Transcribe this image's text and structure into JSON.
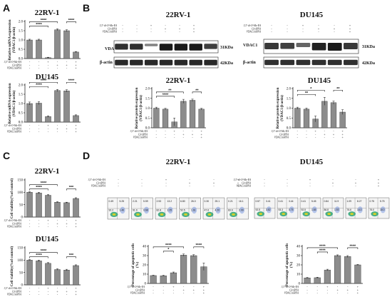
{
  "panels": {
    "A": "A",
    "B": "B",
    "C": "C",
    "D": "D"
  },
  "cell_lines": {
    "a": "22RV-1",
    "b": "DU145"
  },
  "treatment_labels": [
    "3,3'-di-O-Me-EA",
    "CircRNA",
    "VDAC1siRNA"
  ],
  "design": [
    [
      "-",
      "-",
      "-"
    ],
    [
      "-",
      "-",
      "-"
    ],
    [
      "+",
      "-",
      "-"
    ],
    [
      "-",
      "+",
      "-"
    ],
    [
      "-",
      "+",
      "-"
    ],
    [
      "+",
      "+",
      "+"
    ]
  ],
  "blots": {
    "protein": "VDAC1",
    "loading": "β-actin",
    "kda_target": "31KDa",
    "kda_loading": "42KDa"
  },
  "colors": {
    "bar": "#8c8c8c",
    "edge": "#333333",
    "band": "#1a1a1a",
    "facs_bg": "#f4f4f4"
  },
  "chart_data": [
    {
      "id": "A-22RV1",
      "type": "bar",
      "title": "22RV-1",
      "ylabel": "Relative mRNA expression (VDAC1/β-actin)",
      "ylim": [
        0,
        2.0
      ],
      "yticks": [
        0.0,
        0.5,
        1.0,
        1.5,
        2.0
      ],
      "values": [
        1.0,
        1.0,
        0.05,
        1.55,
        1.5,
        0.35
      ],
      "errors": [
        0.04,
        0.04,
        0.02,
        0.05,
        0.05,
        0.03
      ],
      "brackets": [
        {
          "from": 0,
          "to": 2,
          "label": "****",
          "level": 0
        },
        {
          "from": 0,
          "to": 3,
          "label": "****",
          "level": 1
        },
        {
          "from": 4,
          "to": 5,
          "label": "****",
          "level": 1
        }
      ]
    },
    {
      "id": "A-DU145",
      "type": "bar",
      "title": "DU145",
      "ylabel": "Relative mRNA expression (VDAC1/β-actin)",
      "ylim": [
        0,
        2.0
      ],
      "yticks": [
        0.0,
        0.5,
        1.0,
        1.5,
        2.0
      ],
      "values": [
        1.0,
        1.02,
        0.3,
        1.7,
        1.68,
        0.35
      ],
      "errors": [
        0.08,
        0.08,
        0.04,
        0.06,
        0.06,
        0.04
      ],
      "brackets": [
        {
          "from": 0,
          "to": 2,
          "label": "****",
          "level": 0
        },
        {
          "from": 0,
          "to": 3,
          "label": "****",
          "level": 1
        },
        {
          "from": 4,
          "to": 5,
          "label": "****",
          "level": 1
        }
      ]
    },
    {
      "id": "B-22RV1",
      "type": "bar",
      "title": "22RV-1",
      "ylabel": "Relative protein expression (VDAC1/β-actin)",
      "ylim": [
        0,
        2.0
      ],
      "yticks": [
        0.0,
        0.5,
        1.0,
        1.5,
        2.0
      ],
      "values": [
        1.0,
        0.95,
        0.3,
        1.35,
        1.4,
        0.95
      ],
      "errors": [
        0.05,
        0.04,
        0.2,
        0.1,
        0.06,
        0.04
      ],
      "brackets": [
        {
          "from": 0,
          "to": 2,
          "label": "****",
          "level": 0
        },
        {
          "from": 0,
          "to": 3,
          "label": "**",
          "level": 1
        },
        {
          "from": 4,
          "to": 5,
          "label": "**",
          "level": 1
        }
      ]
    },
    {
      "id": "B-DU145",
      "type": "bar",
      "title": "DU145",
      "ylabel": "Relative protein expression (VDAC1/β-actin)",
      "ylim": [
        0,
        2.0
      ],
      "yticks": [
        0.0,
        0.5,
        1.0,
        1.5,
        2.0
      ],
      "values": [
        1.0,
        0.95,
        0.45,
        1.35,
        1.28,
        0.8
      ],
      "errors": [
        0.05,
        0.06,
        0.15,
        0.2,
        0.08,
        0.12
      ],
      "brackets": [
        {
          "from": 0,
          "to": 2,
          "label": "**",
          "level": 0
        },
        {
          "from": 0,
          "to": 3,
          "label": "*",
          "level": 1
        },
        {
          "from": 4,
          "to": 5,
          "label": "**",
          "level": 1
        }
      ]
    },
    {
      "id": "C-22RV1",
      "type": "bar",
      "title": "22RV-1",
      "ylabel": "Cell viability(%of control)",
      "ylim": [
        0,
        150
      ],
      "yticks": [
        0,
        50,
        100,
        150
      ],
      "values": [
        100,
        97,
        88,
        60,
        58,
        75
      ],
      "errors": [
        2,
        3,
        3,
        2,
        2,
        3
      ],
      "brackets": [
        {
          "from": 0,
          "to": 2,
          "label": "****",
          "level": 0
        },
        {
          "from": 0,
          "to": 3,
          "label": "****",
          "level": 1
        },
        {
          "from": 4,
          "to": 5,
          "label": "***",
          "level": 0
        }
      ]
    },
    {
      "id": "C-DU145",
      "type": "bar",
      "title": "DU145",
      "ylabel": "Cell viability(%of control)",
      "ylim": [
        0,
        150
      ],
      "yticks": [
        0,
        50,
        100,
        150
      ],
      "values": [
        100,
        97,
        87,
        62,
        60,
        78
      ],
      "errors": [
        2,
        3,
        3,
        3,
        3,
        3
      ],
      "brackets": [
        {
          "from": 0,
          "to": 2,
          "label": "****",
          "level": 0
        },
        {
          "from": 0,
          "to": 3,
          "label": "****",
          "level": 1
        },
        {
          "from": 4,
          "to": 5,
          "label": "***",
          "level": 0
        }
      ]
    },
    {
      "id": "D-22RV1",
      "type": "bar",
      "title": "22RV-1",
      "ylabel": "Percentage of apoptotic cells (%)",
      "ylim": [
        0,
        40
      ],
      "yticks": [
        0,
        10,
        20,
        30,
        40
      ],
      "values": [
        8.5,
        8.3,
        11.5,
        30.5,
        30.0,
        18.0
      ],
      "errors": [
        0.4,
        0.5,
        0.8,
        1.2,
        1.0,
        4.0
      ],
      "brackets": [
        {
          "from": 1,
          "to": 2,
          "label": "*",
          "level": 0
        },
        {
          "from": 0,
          "to": 3,
          "label": "****",
          "level": 1
        },
        {
          "from": 4,
          "to": 5,
          "label": "****",
          "level": 1
        }
      ]
    },
    {
      "id": "D-DU145",
      "type": "bar",
      "title": "DU145",
      "ylabel": "Percentage of apoptotic cells (%)",
      "ylim": [
        0,
        40
      ],
      "yticks": [
        0,
        10,
        20,
        30,
        40
      ],
      "values": [
        6.0,
        6.2,
        14.5,
        30.0,
        29.0,
        20.0
      ],
      "errors": [
        0.5,
        0.5,
        0.8,
        0.8,
        1.0,
        0.5
      ],
      "brackets": [
        {
          "from": 1,
          "to": 2,
          "label": "****",
          "level": 0
        },
        {
          "from": 0,
          "to": 3,
          "label": "****",
          "level": 1
        },
        {
          "from": 4,
          "to": 5,
          "label": "****",
          "level": 1
        }
      ]
    }
  ],
  "facs": {
    "22RV-1": [
      {
        "ul": "0.49",
        "ur": "5.25",
        "ll": "92.2",
        "lr": "1.40"
      },
      {
        "ul": "2.21",
        "ur": "5.59",
        "ll": "91.9",
        "lr": "0.68"
      },
      {
        "ul": "2.53",
        "ur": "13.2",
        "ll": "82.8",
        "lr": "2.25"
      },
      {
        "ul": "6.80",
        "ur": "26.0",
        "ll": "52.5",
        "lr": "1.61"
      },
      {
        "ul": "0.30",
        "ur": "25.1",
        "ll": "47.6",
        "lr": "4.20"
      },
      {
        "ul": "0.21",
        "ur": "16.1",
        "ll": "83.9",
        "lr": "2.09"
      }
    ],
    "DU145": [
      {
        "ul": "0.57",
        "ur": "3.41",
        "ll": "92.5",
        "lr": "3.52"
      },
      {
        "ul": "0.41",
        "ur": "3.44",
        "ll": "93.3",
        "lr": "0.75"
      },
      {
        "ul": "0.41",
        "ur": "5.45",
        "ll": "92.5",
        "lr": "1.65"
      },
      {
        "ul": "0.84",
        "ur": "11.9",
        "ll": "86.8",
        "lr": "1.53"
      },
      {
        "ul": "1.09",
        "ur": "8.27",
        "ll": "76.6",
        "lr": "14.0"
      },
      {
        "ul": "0.75",
        "ur": "5.75",
        "ll": "76.0",
        "lr": "18.0"
      }
    ]
  }
}
